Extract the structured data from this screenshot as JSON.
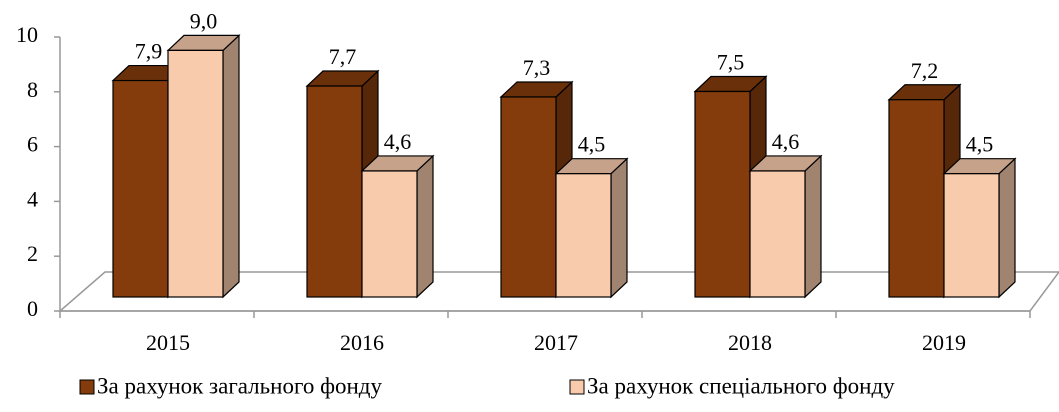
{
  "chart_data": {
    "type": "bar3d",
    "categories": [
      "2015",
      "2016",
      "2017",
      "2018",
      "2019"
    ],
    "series": [
      {
        "name": "За рахунок загального фонду",
        "color": "#843c0c",
        "values": [
          7.9,
          7.7,
          7.3,
          7.5,
          7.2
        ],
        "value_labels": [
          "7,9",
          "7,7",
          "7,3",
          "7,5",
          "7,2"
        ]
      },
      {
        "name": "За рахунок спеціального фонду",
        "color": "#f8cbad",
        "values": [
          9.0,
          4.6,
          4.5,
          4.6,
          4.5
        ],
        "value_labels": [
          "9,0",
          "4,6",
          "4,5",
          "4,6",
          "4,5"
        ]
      }
    ],
    "ylim": [
      0,
      10
    ],
    "yticks": [
      0,
      2,
      4,
      6,
      8,
      10
    ]
  }
}
